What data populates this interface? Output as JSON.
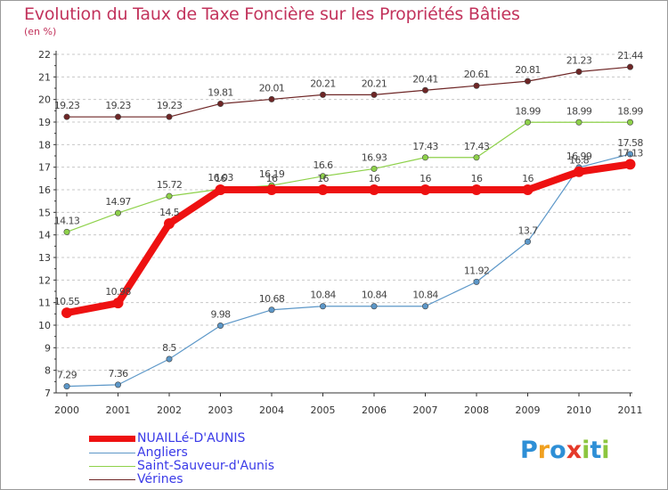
{
  "title": "Evolution du Taux de Taxe Foncière sur les Propriétés Bâties",
  "subtitle": "(en %)",
  "chart_data": {
    "type": "line",
    "title": "Evolution du Taux de Taxe Foncière sur les Propriétés Bâties",
    "ylabel": "(en %)",
    "xlabel": "",
    "ylim": [
      7,
      22
    ],
    "yticks": [
      7,
      8,
      9,
      10,
      11,
      12,
      13,
      14,
      15,
      16,
      17,
      18,
      19,
      20,
      21,
      22
    ],
    "x": [
      "2000",
      "2001",
      "2002",
      "2003",
      "2004",
      "2005",
      "2006",
      "2007",
      "2008",
      "2009",
      "2010",
      "2011"
    ],
    "grid": "horizontal-dashed",
    "legend_position": "bottom-left",
    "series": [
      {
        "name": "Vérines",
        "color": "#6e2626",
        "values": [
          19.23,
          19.23,
          19.23,
          19.81,
          20.01,
          20.21,
          20.21,
          20.41,
          20.61,
          20.81,
          21.23,
          21.44
        ],
        "labels": [
          "19.23",
          "19.23",
          "19.23",
          "19.81",
          "20.01",
          "20.21",
          "20.21",
          "20.41",
          "20.61",
          "20.81",
          "21.23",
          "21.44"
        ]
      },
      {
        "name": "Saint-Sauveur-d'Aunis",
        "color": "#8ed14a",
        "values": [
          14.13,
          14.97,
          15.72,
          16.03,
          16.19,
          16.6,
          16.93,
          17.43,
          17.43,
          18.99,
          18.99,
          18.99
        ],
        "labels": [
          "14.13",
          "14.97",
          "15.72",
          "16.03",
          "16.19",
          "16.6",
          "16.93",
          "17.43",
          "17.43",
          "18.99",
          "18.99",
          "18.99"
        ]
      },
      {
        "name": "Angliers",
        "color": "#5c97c8",
        "values": [
          7.29,
          7.36,
          8.5,
          9.98,
          10.68,
          10.84,
          10.84,
          10.84,
          11.92,
          13.7,
          16.99,
          17.58
        ],
        "labels": [
          "7.29",
          "7.36",
          "8.5",
          "9.98",
          "10.68",
          "10.84",
          "10.84",
          "10.84",
          "11.92",
          "13.7",
          "16.99",
          "17.58"
        ]
      },
      {
        "name": "NUAILLé-D'AUNIS",
        "color": "#ee1111",
        "values": [
          10.55,
          10.98,
          14.5,
          16,
          16,
          16,
          16,
          16,
          16,
          16,
          16.8,
          17.13
        ],
        "labels": [
          "10.55",
          "10.98",
          "14.5",
          "16",
          "16",
          "16",
          "16",
          "16",
          "16",
          "16",
          "16.8",
          "17.13"
        ]
      }
    ]
  },
  "legend": [
    {
      "label": "NUAILLé-D'AUNIS",
      "color": "#ee1111"
    },
    {
      "label": "Angliers",
      "color": "#5c97c8"
    },
    {
      "label": "Saint-Sauveur-d'Aunis",
      "color": "#8ed14a"
    },
    {
      "label": "Vérines",
      "color": "#6e2626"
    }
  ],
  "logo": {
    "text": "Proxiti"
  }
}
